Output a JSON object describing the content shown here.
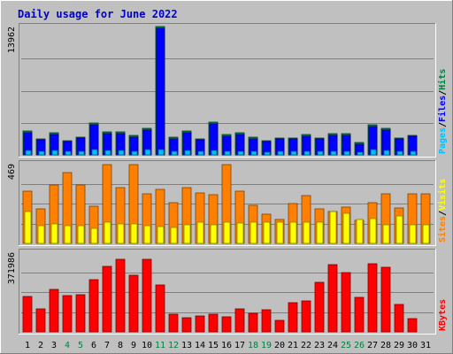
{
  "chart_data": {
    "type": "bar",
    "title": "Daily usage for June 2022",
    "categories": [
      "1",
      "2",
      "3",
      "4",
      "5",
      "6",
      "7",
      "8",
      "9",
      "10",
      "11",
      "12",
      "13",
      "14",
      "15",
      "16",
      "17",
      "18",
      "19",
      "20",
      "21",
      "22",
      "23",
      "24",
      "25",
      "26",
      "27",
      "28",
      "29",
      "30",
      "31"
    ],
    "weekend_days": [
      "4",
      "5",
      "11",
      "12",
      "18",
      "19",
      "25",
      "26"
    ],
    "colors": {
      "background": "#c0c0c0",
      "panel": "#c0c0c0",
      "title": "#0000cc",
      "hits": "#008040",
      "files": "#0000ff",
      "pages": "#00c0ff",
      "visits": "#ffff00",
      "sites": "#ff8000",
      "kbytes": "#ff0000",
      "weekend_label": "#008040"
    },
    "panels": [
      {
        "id": "hits_files_pages",
        "max_label": "13962",
        "ylim": [
          0,
          13962
        ],
        "right_labels": [
          "Pages",
          "Files",
          "Hits"
        ],
        "series": [
          {
            "name": "Hits",
            "values": [
              2600,
              1700,
              2400,
              1500,
              1900,
              3500,
              2500,
              2500,
              2100,
              2900,
              13962,
              1900,
              2600,
              1700,
              3600,
              2200,
              2400,
              1900,
              1500,
              1800,
              1800,
              2200,
              1800,
              2300,
              2300,
              1300,
              3300,
              2900,
              1800,
              2100,
              0
            ]
          },
          {
            "name": "Files",
            "values": [
              2400,
              1600,
              2200,
              1400,
              1800,
              3300,
              2300,
              2300,
              1900,
              2700,
              13800,
              1700,
              2400,
              1600,
              3400,
              2000,
              2200,
              1700,
              1400,
              1700,
              1700,
              2000,
              1700,
              2100,
              2100,
              1200,
              3100,
              2700,
              1700,
              2000,
              0
            ]
          },
          {
            "name": "Pages",
            "values": [
              500,
              400,
              500,
              400,
              400,
              600,
              500,
              500,
              400,
              600,
              600,
              400,
              500,
              400,
              500,
              400,
              400,
              400,
              300,
              400,
              400,
              400,
              400,
              400,
              400,
              300,
              600,
              500,
              400,
              400,
              0
            ]
          }
        ]
      },
      {
        "id": "visits_sites",
        "max_label": "469",
        "ylim": [
          0,
          469
        ],
        "right_labels": [
          "Sites",
          "Visits"
        ],
        "series": [
          {
            "name": "Sites",
            "values": [
              305,
              205,
              345,
              415,
              345,
              220,
              465,
              330,
              465,
              290,
              320,
              240,
              330,
              295,
              285,
              465,
              310,
              225,
              170,
              140,
              235,
              280,
              205,
              185,
              215,
              135,
              240,
              290,
              210,
              290,
              290
            ]
          },
          {
            "name": "Visits",
            "values": [
              185,
              105,
              115,
              105,
              105,
              90,
              125,
              115,
              115,
              105,
              100,
              95,
              110,
              125,
              110,
              125,
              120,
              125,
              125,
              125,
              125,
              125,
              125,
              190,
              175,
              140,
              145,
              110,
              160,
              110,
              110
            ]
          }
        ]
      },
      {
        "id": "kbytes",
        "max_label": "371986",
        "ylim": [
          0,
          371986
        ],
        "right_labels": [
          "KBytes"
        ],
        "series": [
          {
            "name": "KBytes",
            "values": [
              166000,
              109000,
              197000,
              171000,
              174000,
              243000,
              306000,
              340000,
              266000,
              340000,
              217000,
              81000,
              65000,
              75000,
              82000,
              71000,
              109000,
              86000,
              103000,
              52000,
              136000,
              146000,
              230000,
              315000,
              275000,
              160000,
              320000,
              300000,
              130000,
              62000,
              0
            ]
          }
        ]
      }
    ]
  }
}
